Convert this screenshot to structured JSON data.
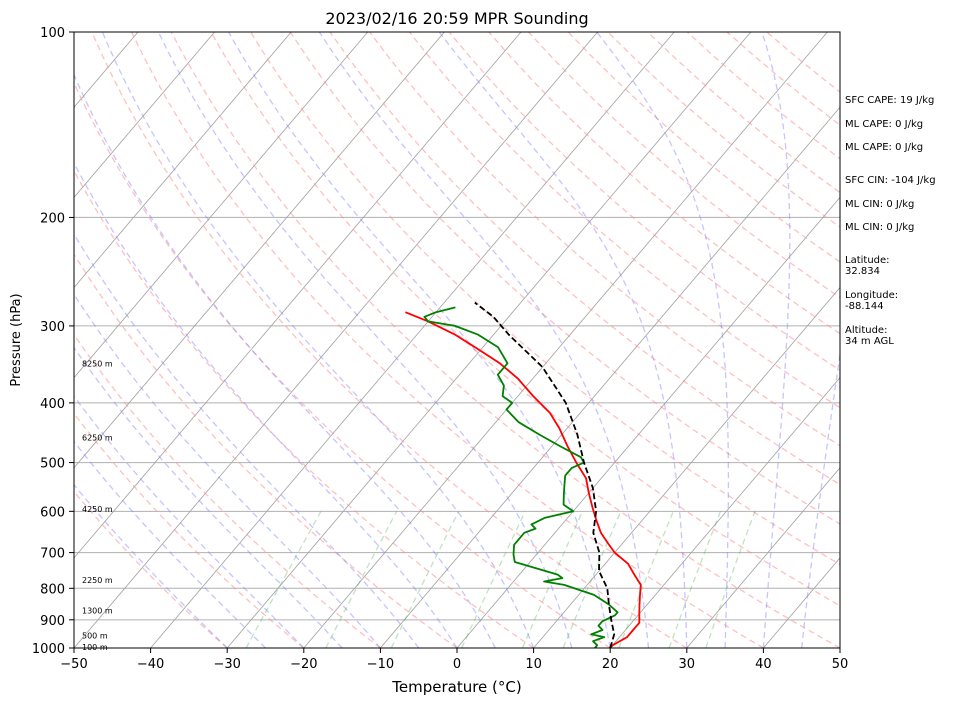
{
  "chart_data": {
    "type": "line",
    "title": "2023/02/16 20:59 MPR Sounding",
    "xlabel": "Temperature (°C)",
    "ylabel": "Pressure (hPa)",
    "xlim": [
      -50,
      50
    ],
    "ylim": [
      1000,
      100
    ],
    "y_scale": "log",
    "x_ticks": [
      -50,
      -40,
      -30,
      -20,
      -10,
      0,
      10,
      20,
      30,
      40,
      50
    ],
    "x_tick_labels": [
      "−50",
      "−40",
      "−30",
      "−20",
      "−10",
      "0",
      "10",
      "20",
      "30",
      "40",
      "50"
    ],
    "y_ticks": [
      1000,
      900,
      800,
      700,
      600,
      500,
      400,
      300,
      200,
      100
    ],
    "y_tick_labels": [
      "1000",
      "900",
      "800",
      "700",
      "600",
      "500",
      "400",
      "300",
      "200",
      "100"
    ],
    "grid": true,
    "height_labels": [
      {
        "text": "100 m",
        "p": 997
      },
      {
        "text": "500 m",
        "p": 955
      },
      {
        "text": "1300 m",
        "p": 870
      },
      {
        "text": "2250 m",
        "p": 775
      },
      {
        "text": "4250 m",
        "p": 595
      },
      {
        "text": "6250 m",
        "p": 455
      },
      {
        "text": "8250 m",
        "p": 345
      }
    ],
    "series": [
      {
        "role": "temperature",
        "color": "#ff0000",
        "points": [
          [
            20,
            1000
          ],
          [
            20,
            990
          ],
          [
            21,
            960
          ],
          [
            21,
            935
          ],
          [
            21,
            910
          ],
          [
            20,
            880
          ],
          [
            19,
            850
          ],
          [
            18,
            820
          ],
          [
            17,
            790
          ],
          [
            15,
            760
          ],
          [
            13,
            730
          ],
          [
            10,
            700
          ],
          [
            8,
            675
          ],
          [
            6,
            650
          ],
          [
            4,
            620
          ],
          [
            2,
            590
          ],
          [
            0,
            560
          ],
          [
            -2,
            530
          ],
          [
            -5,
            500
          ],
          [
            -8,
            470
          ],
          [
            -11,
            440
          ],
          [
            -14,
            415
          ],
          [
            -18,
            390
          ],
          [
            -22,
            365
          ],
          [
            -26,
            345
          ],
          [
            -31,
            325
          ],
          [
            -35,
            310
          ],
          [
            -40,
            295
          ],
          [
            -44,
            285
          ]
        ]
      },
      {
        "role": "dewpoint",
        "color": "#008000",
        "points": [
          [
            18,
            1000
          ],
          [
            18,
            990
          ],
          [
            17,
            975
          ],
          [
            18,
            960
          ],
          [
            16,
            950
          ],
          [
            17,
            935
          ],
          [
            16,
            920
          ],
          [
            16,
            905
          ],
          [
            17,
            885
          ],
          [
            17,
            875
          ],
          [
            15,
            850
          ],
          [
            12,
            820
          ],
          [
            7,
            790
          ],
          [
            4,
            780
          ],
          [
            6,
            770
          ],
          [
            5,
            760
          ],
          [
            -2,
            725
          ],
          [
            -3,
            705
          ],
          [
            -4,
            680
          ],
          [
            -4,
            670
          ],
          [
            -4,
            650
          ],
          [
            -3,
            640
          ],
          [
            -4,
            630
          ],
          [
            -3,
            615
          ],
          [
            0,
            600
          ],
          [
            -2,
            585
          ],
          [
            -3,
            565
          ],
          [
            -4,
            545
          ],
          [
            -5,
            525
          ],
          [
            -5,
            510
          ],
          [
            -4,
            500
          ],
          [
            -5,
            490
          ],
          [
            -9,
            470
          ],
          [
            -13,
            450
          ],
          [
            -17,
            430
          ],
          [
            -20,
            410
          ],
          [
            -20,
            400
          ],
          [
            -22,
            390
          ],
          [
            -23,
            375
          ],
          [
            -25,
            360
          ],
          [
            -25,
            345
          ],
          [
            -28,
            325
          ],
          [
            -32,
            310
          ],
          [
            -36,
            300
          ],
          [
            -40,
            295
          ],
          [
            -41,
            290
          ],
          [
            -40,
            285
          ],
          [
            -38,
            280
          ]
        ]
      },
      {
        "role": "parcel",
        "color": "#000000",
        "style": "dashed",
        "points": [
          [
            20,
            1000
          ],
          [
            19,
            950
          ],
          [
            17,
            900
          ],
          [
            15,
            850
          ],
          [
            13,
            800
          ],
          [
            10,
            750
          ],
          [
            8,
            700
          ],
          [
            5,
            650
          ],
          [
            3,
            600
          ],
          [
            0,
            550
          ],
          [
            -4,
            500
          ],
          [
            -8,
            450
          ],
          [
            -13,
            400
          ],
          [
            -20,
            350
          ],
          [
            -28,
            310
          ],
          [
            -32,
            290
          ],
          [
            -36,
            275
          ]
        ]
      }
    ]
  },
  "info_panel": {
    "sfc_cape": "SFC CAPE: 19 J/kg",
    "ml_cape_1": "ML CAPE: 0 J/kg",
    "ml_cape_2": "ML CAPE: 0 J/kg",
    "sfc_cin": "SFC CIN: -104 J/kg",
    "ml_cin_1": "ML CIN: 0 J/kg",
    "ml_cin_2": "ML CIN: 0 J/kg",
    "latitude": "Latitude:\n32.834",
    "longitude": "Longitude:\n-88.144",
    "altitude": "Altitude:\n34 m AGL"
  }
}
